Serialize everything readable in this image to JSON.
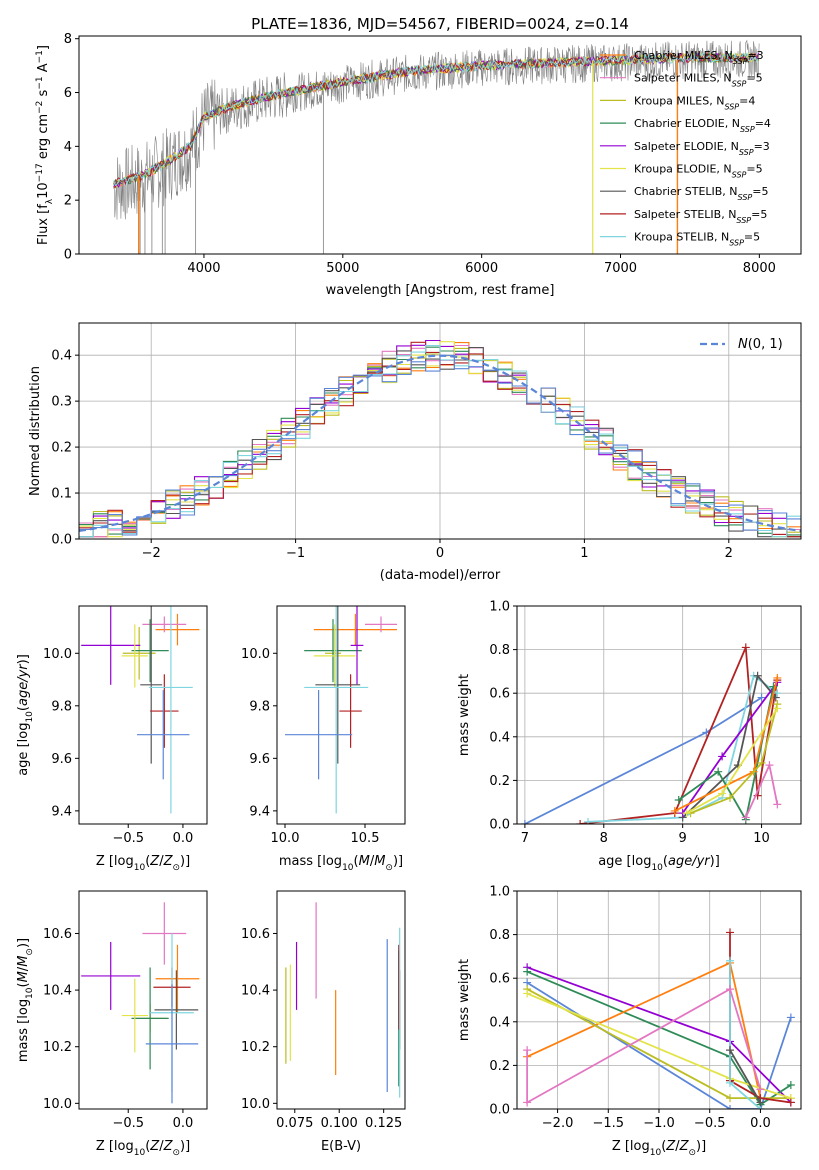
{
  "title": "PLATE=1836, MJD=54567, FIBERID=0024, z=0.14",
  "colors": {
    "miles_chabrier": "#ff7f0e",
    "miles_salpeter": "#e377c2",
    "miles_kroupa": "#bcbd22",
    "elodie_chabrier": "#2e8b57",
    "elodie_salpeter": "#9400d3",
    "elodie_kroupa": "#e3e34a",
    "stelib_chabrier": "#555555",
    "stelib_salpeter": "#b22222",
    "stelib_kroupa": "#7fd6e0",
    "model_blue": "#5b86d8",
    "data_grey": "#808080"
  },
  "chart_data": [
    {
      "type": "line",
      "panel": "spectrum",
      "title": "PLATE=1836, MJD=54567, FIBERID=0024, z=0.14",
      "xlabel": "wavelength [Angstrom, rest frame]",
      "ylabel": "Flux [f_λ10^-17 erg cm^-2 s^-1 A^-1]",
      "xlim": [
        3100,
        8300
      ],
      "ylim": [
        0,
        8.1
      ],
      "xticks": [
        "4000",
        "5000",
        "6000",
        "7000",
        "8000"
      ],
      "yticks": [
        "0",
        "2",
        "4",
        "6",
        "8"
      ],
      "legend": [
        "Chabrier MILES, N_SSP=3",
        "Salpeter MILES, N_SSP=5",
        "Kroupa MILES, N_SSP=4",
        "Chabrier ELODIE, N_SSP=4",
        "Salpeter ELODIE, N_SSP=3",
        "Kroupa ELODIE, N_SSP=5",
        "Chabrier STELIB, N_SSP=5",
        "Salpeter STELIB, N_SSP=5",
        "Kroupa STELIB, N_SSP=5"
      ],
      "legend_location": "upper right",
      "continuum_x": [
        3350,
        3550,
        3700,
        3900,
        4000,
        4200,
        4500,
        5000,
        5500,
        6000,
        6500,
        7000,
        7500,
        8000
      ],
      "continuum_y": [
        2.6,
        2.9,
        3.3,
        4.0,
        5.1,
        5.5,
        5.9,
        6.4,
        6.8,
        7.0,
        7.1,
        7.2,
        7.3,
        7.3
      ]
    },
    {
      "type": "histogram",
      "panel": "residuals",
      "xlabel": "(data-model)/error",
      "ylabel": "Normed distribution",
      "xlim": [
        -2.5,
        2.5
      ],
      "ylim": [
        0,
        0.47
      ],
      "xticks": [
        "−2",
        "−1",
        "0",
        "1",
        "2"
      ],
      "yticks": [
        "0.0",
        "0.1",
        "0.2",
        "0.3",
        "0.4"
      ],
      "legend": [
        "N(0,1)"
      ],
      "reference_curve": "normal(0,1)",
      "grid": true
    },
    {
      "type": "scatter",
      "panel": "age-vs-Z",
      "xlabel": "Z [log10(Z/Z⊙)]",
      "ylabel": "age [log10(age/yr)]",
      "xlim": [
        -0.95,
        0.22
      ],
      "ylim": [
        9.35,
        10.18
      ],
      "xticks": [
        "−0.5",
        "0.0"
      ],
      "yticks": [
        "9.4",
        "9.6",
        "9.8",
        "10.0"
      ],
      "points": [
        {
          "model": "miles_chabrier",
          "x": -0.05,
          "xerr": 0.2,
          "y": 10.09,
          "yerr": 0.06
        },
        {
          "model": "miles_salpeter",
          "x": -0.17,
          "xerr": 0.2,
          "y": 10.11,
          "yerr": 0.03
        },
        {
          "model": "miles_kroupa",
          "x": -0.4,
          "xerr": 0.15,
          "y": 10.0,
          "yerr": 0.1
        },
        {
          "model": "elodie_chabrier",
          "x": -0.3,
          "xerr": 0.17,
          "y": 10.01,
          "yerr": 0.12
        },
        {
          "model": "elodie_salpeter",
          "x": -0.66,
          "xerr": 0.27,
          "y": 10.03,
          "yerr": 0.15
        },
        {
          "model": "elodie_kroupa",
          "x": -0.44,
          "xerr": 0.12,
          "y": 9.99,
          "yerr": 0.12
        },
        {
          "model": "stelib_chabrier",
          "x": -0.29,
          "xerr": 0.1,
          "y": 9.88,
          "yerr": 0.3
        },
        {
          "model": "stelib_salpeter",
          "x": -0.17,
          "xerr": 0.13,
          "y": 9.78,
          "yerr": 0.14
        },
        {
          "model": "stelib_kroupa",
          "x": -0.11,
          "xerr": 0.2,
          "y": 9.87,
          "yerr": 0.48
        },
        {
          "model": "model_blue",
          "x": -0.18,
          "xerr": 0.24,
          "y": 9.69,
          "yerr": 0.17
        }
      ]
    },
    {
      "type": "scatter",
      "panel": "age-vs-mass",
      "xlabel": "mass [log10(M/M⊙)]",
      "ylabel": "",
      "xlim": [
        9.95,
        10.75
      ],
      "ylim": [
        9.35,
        10.18
      ],
      "xticks": [
        "10.0",
        "10.5"
      ],
      "yticks": [
        "9.4",
        "9.6",
        "9.8",
        "10.0"
      ],
      "points": [
        {
          "model": "miles_chabrier",
          "x": 10.44,
          "xerr": 0.26,
          "y": 10.09,
          "yerr": 0.06
        },
        {
          "model": "miles_salpeter",
          "x": 10.6,
          "xerr": 0.1,
          "y": 10.11,
          "yerr": 0.03
        },
        {
          "model": "miles_kroupa",
          "x": 10.3,
          "xerr": 0.05,
          "y": 10.0,
          "yerr": 0.1
        },
        {
          "model": "elodie_chabrier",
          "x": 10.3,
          "xerr": 0.18,
          "y": 10.01,
          "yerr": 0.12
        },
        {
          "model": "elodie_salpeter",
          "x": 10.45,
          "xerr": 0.04,
          "y": 10.03,
          "yerr": 0.15
        },
        {
          "model": "elodie_kroupa",
          "x": 10.31,
          "xerr": 0.13,
          "y": 9.99,
          "yerr": 0.12
        },
        {
          "model": "stelib_chabrier",
          "x": 10.33,
          "xerr": 0.14,
          "y": 9.88,
          "yerr": 0.3
        },
        {
          "model": "stelib_salpeter",
          "x": 10.41,
          "xerr": 0.07,
          "y": 9.78,
          "yerr": 0.14
        },
        {
          "model": "stelib_kroupa",
          "x": 10.32,
          "xerr": 0.2,
          "y": 9.87,
          "yerr": 0.48
        },
        {
          "model": "model_blue",
          "x": 10.21,
          "xerr": 0.21,
          "y": 9.69,
          "yerr": 0.17
        }
      ]
    },
    {
      "type": "line",
      "panel": "mass-weight-vs-age",
      "xlabel": "age [log10(age/yr)]",
      "ylabel": "mass weight",
      "xlim": [
        6.9,
        10.5
      ],
      "ylim": [
        0,
        1.0
      ],
      "xticks": [
        "7",
        "8",
        "9",
        "10"
      ],
      "yticks": [
        "0.0",
        "0.2",
        "0.4",
        "0.6",
        "0.8",
        "1.0"
      ],
      "series": [
        {
          "model": "model_blue",
          "x": [
            7.0,
            9.3,
            10.0
          ],
          "y": [
            0.0,
            0.42,
            0.58
          ]
        },
        {
          "model": "stelib_salpeter",
          "x": [
            7.7,
            8.9,
            9.8,
            9.95,
            10.2
          ],
          "y": [
            0.0,
            0.05,
            0.81,
            0.13,
            0.66
          ]
        },
        {
          "model": "stelib_kroupa",
          "x": [
            7.8,
            9.0,
            9.5,
            9.9,
            10.2
          ],
          "y": [
            0.01,
            0.03,
            0.12,
            0.68,
            0.6
          ]
        },
        {
          "model": "stelib_chabrier",
          "x": [
            9.0,
            9.7,
            9.95,
            10.18
          ],
          "y": [
            0.03,
            0.27,
            0.68,
            0.58
          ]
        },
        {
          "model": "elodie_salpeter",
          "x": [
            9.0,
            9.5,
            10.2
          ],
          "y": [
            0.05,
            0.31,
            0.65
          ]
        },
        {
          "model": "elodie_chabrier",
          "x": [
            8.95,
            9.45,
            9.8,
            10.15
          ],
          "y": [
            0.11,
            0.24,
            0.02,
            0.63
          ]
        },
        {
          "model": "miles_chabrier",
          "x": [
            8.9,
            9.9,
            10.2
          ],
          "y": [
            0.06,
            0.24,
            0.67
          ]
        },
        {
          "model": "miles_kroupa",
          "x": [
            9.1,
            9.6,
            10.0,
            10.2
          ],
          "y": [
            0.05,
            0.12,
            0.28,
            0.55
          ]
        },
        {
          "model": "elodie_kroupa",
          "x": [
            9.05,
            9.5,
            10.2
          ],
          "y": [
            0.05,
            0.14,
            0.53
          ]
        },
        {
          "model": "miles_salpeter",
          "x": [
            9.8,
            10.1,
            10.2
          ],
          "y": [
            0.03,
            0.27,
            0.09
          ]
        }
      ]
    },
    {
      "type": "scatter",
      "panel": "mass-vs-Z",
      "xlabel": "Z [log10(Z/Z⊙)]",
      "ylabel": "mass [log10(M/M⊙)]",
      "xlim": [
        -0.95,
        0.22
      ],
      "ylim": [
        9.98,
        10.75
      ],
      "xticks": [
        "−0.5",
        "0.0"
      ],
      "yticks": [
        "10.0",
        "10.2",
        "10.4",
        "10.6"
      ],
      "points": [
        {
          "model": "miles_chabrier",
          "x": -0.05,
          "xerr": 0.2,
          "y": 10.44,
          "yerr": 0.12
        },
        {
          "model": "miles_salpeter",
          "x": -0.17,
          "xerr": 0.2,
          "y": 10.6,
          "yerr": 0.11
        },
        {
          "model": "miles_kroupa",
          "x": -0.3,
          "xerr": 0.15,
          "y": 10.3,
          "yerr": 0.05
        },
        {
          "model": "elodie_chabrier",
          "x": -0.3,
          "xerr": 0.17,
          "y": 10.3,
          "yerr": 0.18
        },
        {
          "model": "elodie_salpeter",
          "x": -0.66,
          "xerr": 0.27,
          "y": 10.45,
          "yerr": 0.12
        },
        {
          "model": "elodie_kroupa",
          "x": -0.44,
          "xerr": 0.12,
          "y": 10.31,
          "yerr": 0.13
        },
        {
          "model": "stelib_chabrier",
          "x": -0.06,
          "xerr": 0.2,
          "y": 10.33,
          "yerr": 0.14
        },
        {
          "model": "stelib_salpeter",
          "x": -0.1,
          "xerr": 0.17,
          "y": 10.41,
          "yerr": 0.07
        },
        {
          "model": "stelib_kroupa",
          "x": -0.1,
          "xerr": 0.2,
          "y": 10.32,
          "yerr": 0.28
        },
        {
          "model": "model_blue",
          "x": -0.1,
          "xerr": 0.24,
          "y": 10.21,
          "yerr": 0.21
        }
      ]
    },
    {
      "type": "scatter",
      "panel": "mass-vs-EBV",
      "xlabel": "E(B-V)",
      "ylabel": "",
      "xlim": [
        0.065,
        0.137
      ],
      "ylim": [
        9.98,
        10.75
      ],
      "xticks": [
        "0.075",
        "0.100",
        "0.125"
      ],
      "yticks": [
        "10.0",
        "10.2",
        "10.4",
        "10.6"
      ],
      "points": [
        {
          "model": "miles_chabrier",
          "x": 0.098,
          "y": 10.25,
          "yerr": 0.15
        },
        {
          "model": "miles_salpeter",
          "x": 0.087,
          "y": 10.54,
          "yerr": 0.17
        },
        {
          "model": "miles_kroupa",
          "x": 0.07,
          "y": 10.31,
          "yerr": 0.17
        },
        {
          "model": "elodie_chabrier",
          "x": 0.1335,
          "y": 10.3,
          "yerr": 0.24
        },
        {
          "model": "elodie_salpeter",
          "x": 0.076,
          "y": 10.45,
          "yerr": 0.12
        },
        {
          "model": "elodie_kroupa",
          "x": 0.0725,
          "y": 10.32,
          "yerr": 0.17
        },
        {
          "model": "stelib_chabrier",
          "x": 0.134,
          "y": 10.33,
          "yerr": 0.14
        },
        {
          "model": "stelib_salpeter",
          "x": 0.1335,
          "y": 10.41,
          "yerr": 0.15
        },
        {
          "model": "stelib_kroupa",
          "x": 0.134,
          "y": 10.32,
          "yerr": 0.3
        },
        {
          "model": "model_blue",
          "x": 0.127,
          "y": 10.31,
          "yerr": 0.27
        }
      ]
    },
    {
      "type": "line",
      "panel": "mass-weight-vs-Z",
      "xlabel": "Z [log10(Z/Z⊙)]",
      "ylabel": "mass weight",
      "xlim": [
        -2.4,
        0.4
      ],
      "ylim": [
        0,
        1.0
      ],
      "xticks": [
        "−2.0",
        "−1.5",
        "−1.0",
        "−0.5",
        "0.0"
      ],
      "yticks": [
        "0.0",
        "0.2",
        "0.4",
        "0.6",
        "0.8",
        "1.0"
      ],
      "series": [
        {
          "model": "model_blue",
          "x": [
            -2.3,
            -0.3,
            0.0,
            0.3
          ],
          "y": [
            0.58,
            0.0,
            0.0,
            0.42
          ]
        },
        {
          "model": "elodie_salpeter",
          "x": [
            -2.3,
            -0.3,
            0.3
          ],
          "y": [
            0.65,
            0.31,
            0.03
          ]
        },
        {
          "model": "elodie_chabrier",
          "x": [
            -2.3,
            -0.3,
            0.0,
            0.3
          ],
          "y": [
            0.63,
            0.24,
            0.02,
            0.11
          ]
        },
        {
          "model": "miles_chabrier",
          "x": [
            -2.3,
            -0.3,
            0.0
          ],
          "y": [
            0.24,
            0.67,
            0.05
          ]
        },
        {
          "model": "miles_kroupa",
          "x": [
            -2.3,
            -0.3,
            0.3
          ],
          "y": [
            0.55,
            0.05,
            0.05
          ]
        },
        {
          "model": "elodie_kroupa",
          "x": [
            -2.3,
            -0.3,
            0.3
          ],
          "y": [
            0.53,
            0.14,
            0.05
          ]
        },
        {
          "model": "stelib_salpeter",
          "x": [
            -0.3,
            -0.3,
            0.0,
            0.3
          ],
          "y": [
            0.81,
            0.13,
            0.05,
            0.03
          ]
        },
        {
          "model": "stelib_kroupa",
          "x": [
            -0.3,
            -0.3,
            0.0
          ],
          "y": [
            0.68,
            0.12,
            0.0
          ]
        },
        {
          "model": "miles_salpeter",
          "x": [
            -2.3,
            -2.3,
            -0.3,
            0.0
          ],
          "y": [
            0.27,
            0.03,
            0.55,
            0.09
          ]
        },
        {
          "model": "stelib_chabrier",
          "x": [
            -0.3,
            0.0
          ],
          "y": [
            0.27,
            0.03
          ]
        }
      ]
    }
  ]
}
